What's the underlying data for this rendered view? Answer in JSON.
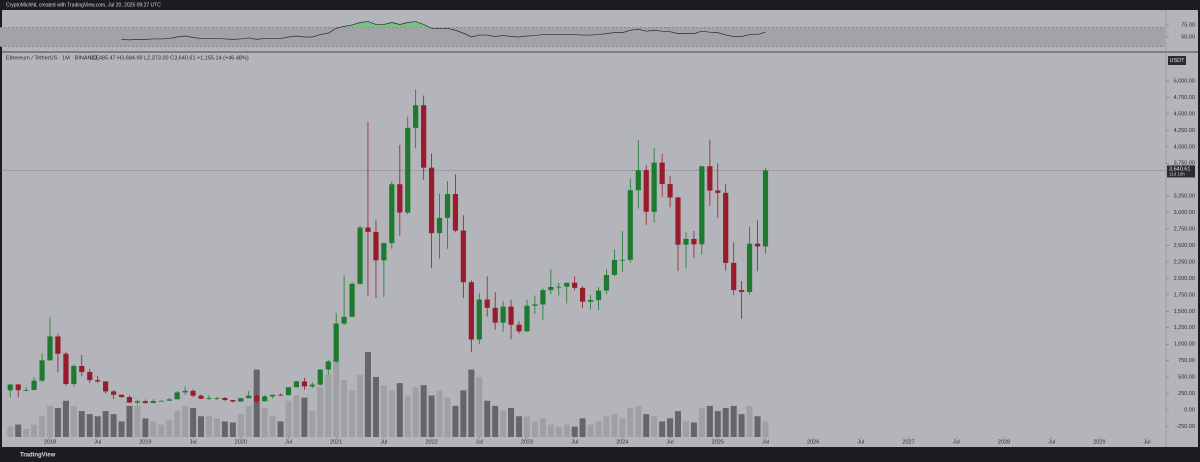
{
  "header": {
    "attribution": "CryptoMichNL created with TradingView.com, Jul 20, 2025 09:27 UTC",
    "symbol": "Ethereum / TetherUS · 1M · BINANCE",
    "ohlc_text": "O2,485.47 H3,684.99 L2,373.00 C3,640.61 +1,155.14 (+46.48%)"
  },
  "logo": "TradingView",
  "chart_data": {
    "type": "candlestick",
    "x": [
      2017.583,
      2017.667,
      2017.75,
      2017.833,
      2017.917,
      2018,
      2018.083,
      2018.167,
      2018.25,
      2018.333,
      2018.417,
      2018.5,
      2018.583,
      2018.667,
      2018.75,
      2018.833,
      2018.917,
      2019,
      2019.083,
      2019.167,
      2019.25,
      2019.333,
      2019.417,
      2019.5,
      2019.583,
      2019.667,
      2019.75,
      2019.833,
      2019.917,
      2020,
      2020.083,
      2020.167,
      2020.25,
      2020.333,
      2020.417,
      2020.5,
      2020.583,
      2020.667,
      2020.75,
      2020.833,
      2020.917,
      2021,
      2021.083,
      2021.167,
      2021.25,
      2021.333,
      2021.417,
      2021.5,
      2021.583,
      2021.667,
      2021.75,
      2021.833,
      2021.917,
      2022,
      2022.083,
      2022.167,
      2022.25,
      2022.333,
      2022.417,
      2022.5,
      2022.583,
      2022.667,
      2022.75,
      2022.833,
      2022.917,
      2023,
      2023.083,
      2023.167,
      2023.25,
      2023.333,
      2023.417,
      2023.5,
      2023.583,
      2023.667,
      2023.75,
      2023.833,
      2023.917,
      2024,
      2024.083,
      2024.167,
      2024.25,
      2024.333,
      2024.417,
      2024.5,
      2024.583,
      2024.667,
      2024.75,
      2024.833,
      2024.917,
      2025,
      2025.083,
      2025.167,
      2025.25,
      2025.333,
      2025.417,
      2025.5
    ],
    "open": [
      300,
      388,
      302,
      305,
      446,
      755,
      1118,
      855,
      395,
      670,
      578,
      455,
      434,
      283,
      232,
      197,
      113,
      133,
      106,
      136,
      141,
      162,
      268,
      291,
      218,
      172,
      180,
      183,
      151,
      129,
      180,
      218,
      133,
      206,
      231,
      226,
      346,
      435,
      360,
      386,
      615,
      737,
      1314,
      1416,
      1918,
      2773,
      2707,
      2275,
      2536,
      3431,
      3001,
      4288,
      4632,
      3683,
      2688,
      2920,
      3282,
      2727,
      1942,
      1072,
      1679,
      1553,
      1328,
      1572,
      1296,
      1196,
      1585,
      1605,
      1822,
      1870,
      1874,
      1934,
      1857,
      1646,
      1671,
      1815,
      2052,
      2282,
      2283,
      3340,
      3647,
      3013,
      3760,
      3433,
      3230,
      2513,
      2600,
      2518,
      3705,
      3335,
      3300,
      2235,
      1822,
      1793,
      2528,
      2485.47
    ],
    "high": [
      390,
      395,
      350,
      500,
      860,
      1420,
      1160,
      880,
      690,
      835,
      625,
      515,
      438,
      302,
      235,
      223,
      159,
      160,
      165,
      145,
      185,
      288,
      362,
      320,
      236,
      224,
      199,
      195,
      153,
      183,
      288,
      253,
      228,
      227,
      253,
      350,
      445,
      488,
      420,
      620,
      760,
      1475,
      2040,
      1943,
      2800,
      4380,
      2892,
      2550,
      3470,
      4030,
      4460,
      4870,
      4780,
      3900,
      3290,
      3480,
      3580,
      2960,
      1970,
      1780,
      2030,
      1790,
      1660,
      1680,
      1350,
      1680,
      1740,
      1850,
      2140,
      1930,
      1930,
      2030,
      1880,
      1750,
      1870,
      2140,
      2440,
      2720,
      3520,
      4100,
      3720,
      3980,
      3890,
      3560,
      3240,
      2700,
      2720,
      3690,
      4110,
      3750,
      3440,
      2550,
      1960,
      2790,
      2880,
      3684.99
    ],
    "low": [
      190,
      196,
      285,
      298,
      420,
      750,
      570,
      370,
      360,
      510,
      410,
      410,
      250,
      167,
      187,
      102,
      82,
      100,
      102,
      125,
      140,
      160,
      230,
      195,
      163,
      154,
      152,
      140,
      116,
      127,
      180,
      90,
      130,
      177,
      214,
      220,
      353,
      308,
      335,
      371,
      535,
      714,
      1290,
      1440,
      1902,
      1735,
      1700,
      1718,
      2450,
      2650,
      2970,
      3975,
      3500,
      2160,
      2300,
      2450,
      2700,
      1700,
      880,
      1000,
      1420,
      1220,
      1190,
      1075,
      1160,
      1190,
      1460,
      1370,
      1760,
      1740,
      1620,
      1820,
      1550,
      1530,
      1520,
      1760,
      2030,
      2100,
      2240,
      3060,
      2810,
      2850,
      3240,
      3080,
      2110,
      2150,
      2310,
      2360,
      3100,
      2920,
      2120,
      1750,
      1385,
      1750,
      2110,
      2373.0
    ],
    "close": [
      388,
      302,
      305,
      446,
      755,
      1118,
      855,
      395,
      670,
      578,
      455,
      434,
      283,
      232,
      197,
      113,
      133,
      106,
      136,
      141,
      162,
      268,
      291,
      218,
      172,
      180,
      183,
      151,
      129,
      180,
      218,
      133,
      206,
      231,
      226,
      346,
      435,
      360,
      386,
      615,
      737,
      1314,
      1416,
      1918,
      2773,
      2707,
      2275,
      2536,
      3431,
      3001,
      4288,
      4632,
      3683,
      2688,
      2920,
      3282,
      2727,
      1942,
      1072,
      1679,
      1553,
      1328,
      1572,
      1296,
      1196,
      1585,
      1605,
      1822,
      1870,
      1874,
      1934,
      1857,
      1646,
      1671,
      1815,
      2052,
      2282,
      2283,
      3340,
      3647,
      3013,
      3760,
      3433,
      3230,
      2513,
      2600,
      2518,
      3705,
      3335,
      3300,
      2235,
      1822,
      1793,
      2528,
      2486,
      3640.61
    ],
    "volume": [
      10,
      12,
      8,
      12,
      20,
      30,
      28,
      35,
      30,
      25,
      22,
      20,
      25,
      22,
      15,
      30,
      30,
      18,
      15,
      12,
      16,
      25,
      30,
      28,
      20,
      20,
      18,
      15,
      14,
      22,
      30,
      65,
      28,
      20,
      15,
      35,
      40,
      38,
      25,
      48,
      60,
      75,
      55,
      45,
      60,
      82,
      58,
      50,
      45,
      52,
      40,
      48,
      50,
      40,
      45,
      38,
      30,
      45,
      65,
      58,
      35,
      30,
      25,
      28,
      20,
      20,
      15,
      18,
      12,
      10,
      12,
      10,
      18,
      12,
      15,
      20,
      22,
      18,
      28,
      30,
      22,
      20,
      15,
      18,
      25,
      15,
      14,
      28,
      30,
      25,
      28,
      30,
      22,
      30,
      20,
      15
    ],
    "up_color": "#1f7a30",
    "down_color": "#981c2b",
    "up_volume_color": "#9c9da2",
    "down_volume_color": "#5c5d62",
    "xlim": [
      2017.476,
      2029.688
    ],
    "xticks": [
      2018,
      {
        "value": 2018.5,
        "label": "Jul"
      },
      2019,
      {
        "value": 2019.5,
        "label": "Jul"
      },
      2020,
      {
        "value": 2020.5,
        "label": "Jul"
      },
      2021,
      {
        "value": 2021.5,
        "label": "Jul"
      },
      2022,
      {
        "value": 2022.5,
        "label": "Jul"
      },
      2023,
      {
        "value": 2023.5,
        "label": "Jul"
      },
      2024,
      {
        "value": 2024.5,
        "label": "Jul"
      },
      2025,
      {
        "value": 2025.5,
        "label": "Jul"
      },
      2026,
      {
        "value": 2026.5,
        "label": "Jul"
      },
      2027,
      {
        "value": 2027.5,
        "label": "Jul"
      },
      2028,
      {
        "value": 2028.5,
        "label": "Jul"
      },
      2029,
      {
        "value": 2029.5,
        "label": "Jul"
      }
    ],
    "ylim": [
      -562,
      5395
    ],
    "yticks": [
      {
        "value": -250,
        "label": "-250.00"
      },
      {
        "value": 0,
        "label": "0.00"
      },
      {
        "value": 250,
        "label": "250.00"
      },
      {
        "value": 500,
        "label": "500.00"
      },
      {
        "value": 750,
        "label": "750.00"
      },
      {
        "value": 1000,
        "label": "1,000.00"
      },
      {
        "value": 1250,
        "label": "1,250.00"
      },
      {
        "value": 1500,
        "label": "1,500.00"
      },
      {
        "value": 1750,
        "label": "1,750.00"
      },
      {
        "value": 2000,
        "label": "2,000.00"
      },
      {
        "value": 2250,
        "label": "2,250.00"
      },
      {
        "value": 2500,
        "label": "2,500.00"
      },
      {
        "value": 2750,
        "label": "2,750.00"
      },
      {
        "value": 3000,
        "label": "3,000.00"
      },
      {
        "value": 3250,
        "label": "3,250.00"
      },
      {
        "value": 3750,
        "label": "3,750.00"
      },
      {
        "value": 4000,
        "label": "4,000.00"
      },
      {
        "value": 4250,
        "label": "4,250.00"
      },
      {
        "value": 4500,
        "label": "4,500.00"
      },
      {
        "value": 4750,
        "label": "4,750.00"
      },
      {
        "value": 5000,
        "label": "5,000.00"
      }
    ],
    "currency": "USDT",
    "last_label": "3,640.61",
    "countdown": "11d 18h",
    "rsi": {
      "values": [
        null,
        null,
        null,
        null,
        null,
        null,
        null,
        null,
        null,
        null,
        null,
        null,
        null,
        null,
        45,
        44,
        45,
        45,
        46,
        46,
        47,
        50,
        52,
        49,
        47,
        47,
        47,
        46,
        45,
        46,
        48,
        45,
        47,
        47,
        47,
        50,
        52,
        50,
        50,
        55,
        58,
        68,
        72,
        75,
        80,
        82,
        76,
        76,
        80,
        76,
        80,
        82,
        76,
        68,
        68,
        68,
        64,
        58,
        50,
        54,
        54,
        51,
        53,
        51,
        50,
        52,
        53,
        55,
        55,
        55,
        55,
        55,
        54,
        54,
        55,
        57,
        59,
        59,
        64,
        66,
        62,
        64,
        62,
        61,
        57,
        57,
        57,
        62,
        60,
        59,
        54,
        51,
        51,
        55,
        55,
        60
      ],
      "ylim": [
        23,
        106
      ],
      "yticks": [
        {
          "value": 75,
          "label": "75.00"
        },
        {
          "value": 50,
          "label": "50.00"
        }
      ],
      "band": [
        30,
        70
      ],
      "color": "#2a2a2e"
    }
  }
}
